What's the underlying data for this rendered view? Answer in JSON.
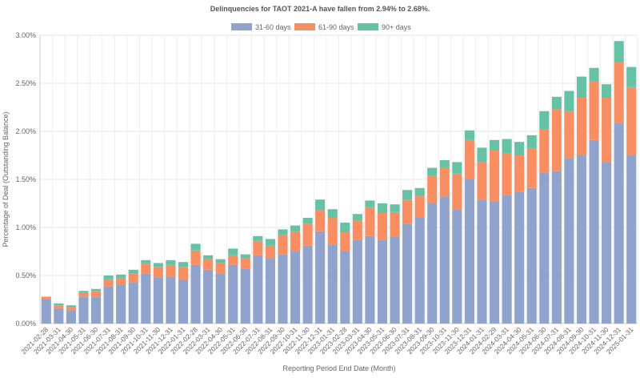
{
  "chart_data": {
    "type": "bar",
    "stacked": true,
    "title": "Delinquencies for TAOT 2021-A have fallen from 2.94% to 2.68%.",
    "xlabel": "Reporting Period End Date (Month)",
    "ylabel": "Percentage of Deal (Outstanding Balance)",
    "ylim": [
      0,
      3.0
    ],
    "yticks": [
      "0.00%",
      "0.50%",
      "1.00%",
      "1.50%",
      "2.00%",
      "2.50%",
      "3.00%"
    ],
    "grid": true,
    "legend_position": "top-center",
    "colors": {
      "31-60 days": "#8fa3cc",
      "61-90 days": "#f98e63",
      "90+ days": "#66c2a4"
    },
    "categories": [
      "2021-02-28",
      "2021-03-31",
      "2021-04-30",
      "2021-05-31",
      "2021-06-30",
      "2021-07-31",
      "2021-08-31",
      "2021-09-30",
      "2021-10-31",
      "2021-11-30",
      "2021-12-31",
      "2022-01-31",
      "2022-02-28",
      "2022-03-31",
      "2022-04-30",
      "2022-05-31",
      "2022-06-30",
      "2022-07-31",
      "2022-08-31",
      "2022-09-30",
      "2022-10-31",
      "2022-11-30",
      "2022-12-31",
      "2023-01-31",
      "2023-02-28",
      "2023-03-31",
      "2023-04-30",
      "2023-05-31",
      "2023-06-30",
      "2023-07-31",
      "2023-08-31",
      "2023-09-30",
      "2023-10-31",
      "2023-11-30",
      "2023-12-31",
      "2024-01-31",
      "2024-02-29",
      "2024-03-31",
      "2024-04-30",
      "2024-05-31",
      "2024-06-30",
      "2024-07-31",
      "2024-08-31",
      "2024-09-30",
      "2024-10-31",
      "2024-11-30",
      "2024-12-31",
      "2025-01-31"
    ],
    "series": [
      {
        "name": "31-60 days",
        "values": [
          0.25,
          0.16,
          0.14,
          0.28,
          0.28,
          0.39,
          0.4,
          0.43,
          0.52,
          0.48,
          0.49,
          0.45,
          0.61,
          0.56,
          0.52,
          0.61,
          0.57,
          0.71,
          0.68,
          0.72,
          0.75,
          0.81,
          0.96,
          0.82,
          0.75,
          0.87,
          0.91,
          0.87,
          0.9,
          1.04,
          1.1,
          1.25,
          1.32,
          1.19,
          1.5,
          1.29,
          1.27,
          1.34,
          1.37,
          1.41,
          1.57,
          1.59,
          1.72,
          1.75,
          1.91,
          1.68,
          2.09,
          1.75
        ]
      },
      {
        "name": "61-90 days",
        "values": [
          0.03,
          0.03,
          0.03,
          0.04,
          0.06,
          0.07,
          0.07,
          0.09,
          0.1,
          0.11,
          0.12,
          0.14,
          0.15,
          0.11,
          0.11,
          0.1,
          0.11,
          0.15,
          0.13,
          0.2,
          0.21,
          0.23,
          0.22,
          0.28,
          0.2,
          0.2,
          0.3,
          0.28,
          0.26,
          0.25,
          0.23,
          0.29,
          0.3,
          0.37,
          0.41,
          0.39,
          0.53,
          0.43,
          0.38,
          0.41,
          0.45,
          0.64,
          0.49,
          0.6,
          0.61,
          0.67,
          0.63,
          0.71
        ]
      },
      {
        "name": "90+ days",
        "values": [
          0.0,
          0.02,
          0.02,
          0.02,
          0.02,
          0.04,
          0.04,
          0.04,
          0.04,
          0.04,
          0.05,
          0.05,
          0.07,
          0.04,
          0.04,
          0.07,
          0.04,
          0.05,
          0.07,
          0.06,
          0.06,
          0.06,
          0.11,
          0.09,
          0.1,
          0.07,
          0.07,
          0.1,
          0.08,
          0.1,
          0.08,
          0.08,
          0.08,
          0.12,
          0.1,
          0.15,
          0.11,
          0.15,
          0.14,
          0.14,
          0.19,
          0.13,
          0.21,
          0.22,
          0.14,
          0.14,
          0.22,
          0.21
        ]
      }
    ]
  }
}
